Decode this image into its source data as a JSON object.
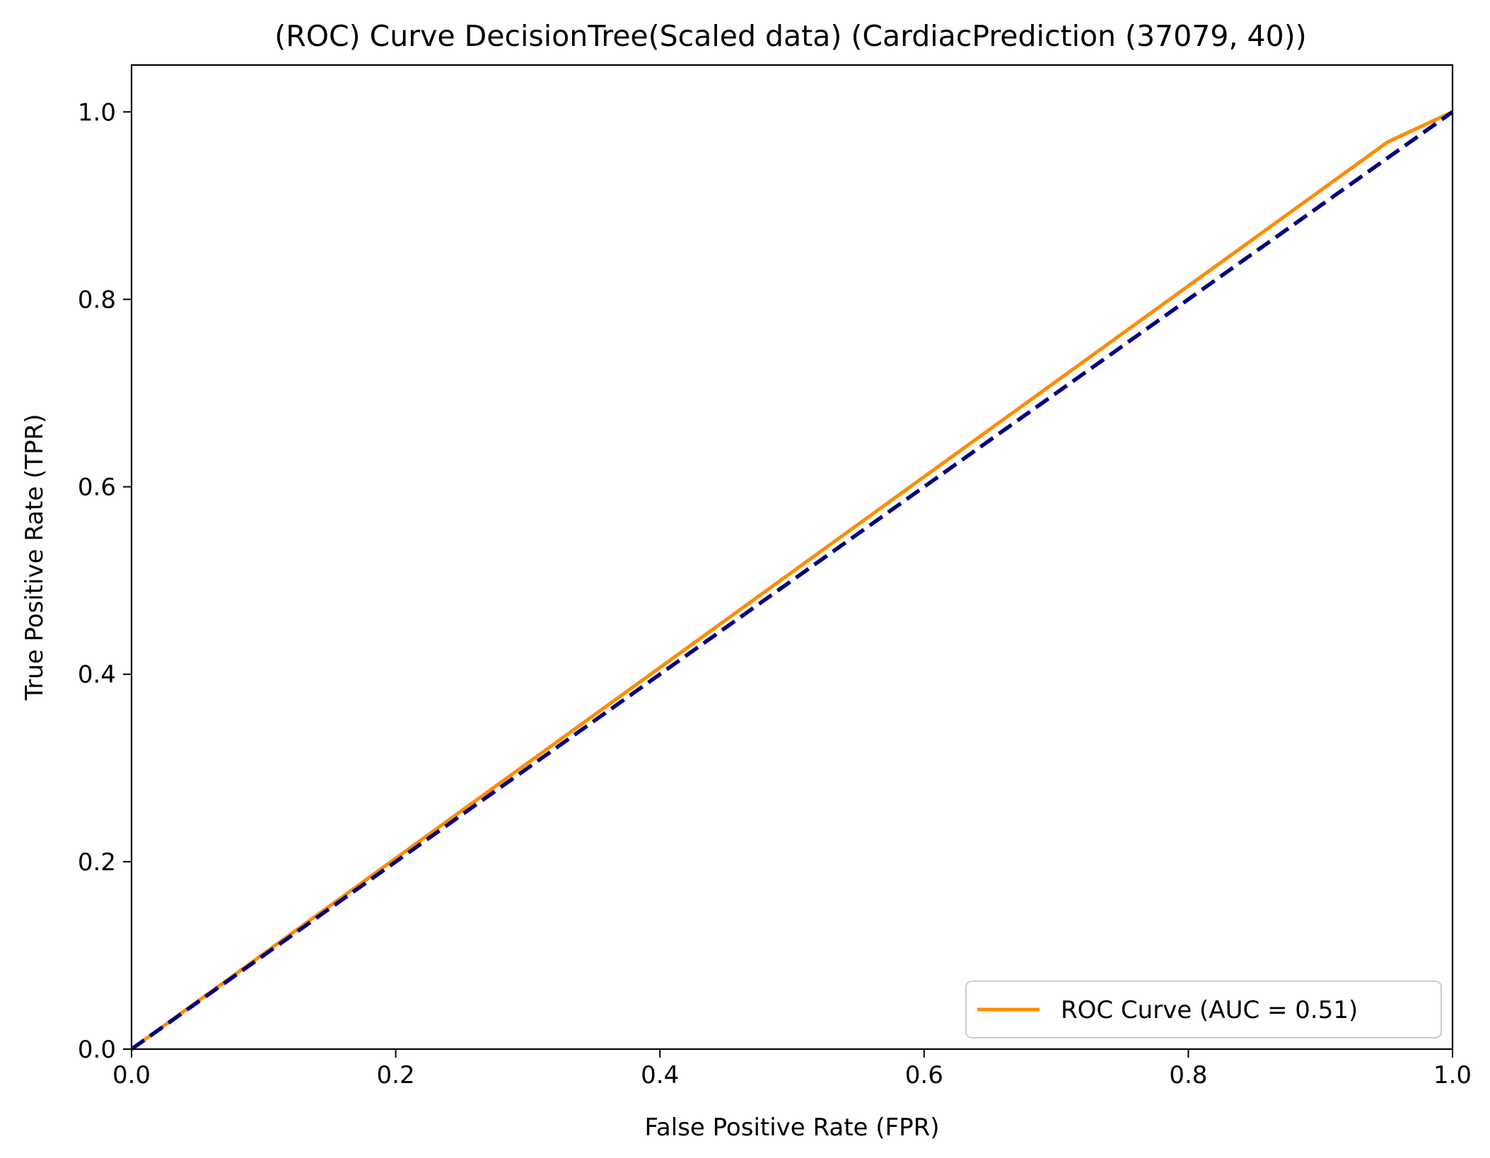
{
  "chart_data": {
    "type": "line",
    "title": "(ROC) Curve DecisionTree(Scaled data) (CardiacPrediction (37079, 40))",
    "xlabel": "False Positive Rate (FPR)",
    "ylabel": "True Positive Rate (TPR)",
    "xlim": [
      0.0,
      1.0
    ],
    "ylim": [
      0.0,
      1.05
    ],
    "xticks": [
      "0.0",
      "0.2",
      "0.4",
      "0.6",
      "0.8",
      "1.0"
    ],
    "yticks": [
      "0.0",
      "0.2",
      "0.4",
      "0.6",
      "0.8",
      "1.0"
    ],
    "grid": false,
    "legend_position": "lower-right",
    "series": [
      {
        "name": "ROC Curve (AUC = 0.51)",
        "color": "#ff8c00",
        "style": "solid",
        "x": [
          0.0,
          0.951,
          1.0
        ],
        "y": [
          0.0,
          0.968,
          1.0
        ]
      },
      {
        "color": "#000080",
        "style": "dashed",
        "x": [
          0.0,
          1.0
        ],
        "y": [
          0.0,
          1.0
        ]
      }
    ]
  }
}
